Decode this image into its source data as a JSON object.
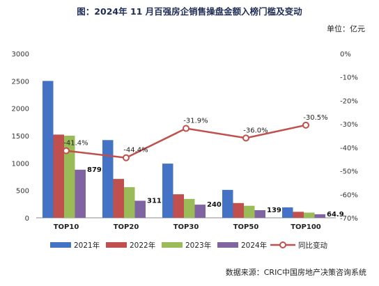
{
  "title": "图：2024年 11 月百强房企销售操盘金额入榜门槛及变动",
  "unit": "单位：亿元",
  "source": "数据来源：CRIC中国房地产决策咨询系统",
  "chart_data": {
    "type": "bar",
    "categories": [
      "TOP10",
      "TOP20",
      "TOP30",
      "TOP50",
      "TOP100"
    ],
    "series": [
      {
        "name": "2021年",
        "color": "#4472c4",
        "values": [
          2500,
          1420,
          990,
          510,
          190
        ]
      },
      {
        "name": "2022年",
        "color": "#c0504d",
        "values": [
          1520,
          710,
          430,
          270,
          110
        ]
      },
      {
        "name": "2023年",
        "color": "#9bbb59",
        "values": [
          1500,
          560,
          345,
          220,
          95
        ]
      },
      {
        "name": "2024年",
        "color": "#8064a2",
        "values": [
          879.0,
          311.8,
          240.3,
          139.3,
          64.9
        ],
        "labels": [
          "879.0",
          "311.8",
          "240.3",
          "139.3",
          "64.9"
        ]
      }
    ],
    "line": {
      "name": "同比变动",
      "color": "#c0504d",
      "values": [
        -41.4,
        -44.4,
        -31.9,
        -36.0,
        -30.5
      ],
      "labels": [
        "-41.4%",
        "-44.4%",
        "-31.9%",
        "-36.0%",
        "-30.5%"
      ]
    },
    "y_left": {
      "min": 0,
      "max": 3000,
      "ticks": [
        "0",
        "500",
        "1000",
        "1500",
        "2000",
        "2500",
        "3000"
      ]
    },
    "y_right": {
      "min": -70,
      "max": 0,
      "ticks": [
        "0%",
        "-10%",
        "-20%",
        "-30%",
        "-40%",
        "-50%",
        "-60%",
        "-70%"
      ]
    },
    "legend_position": "bottom",
    "grid": false
  }
}
